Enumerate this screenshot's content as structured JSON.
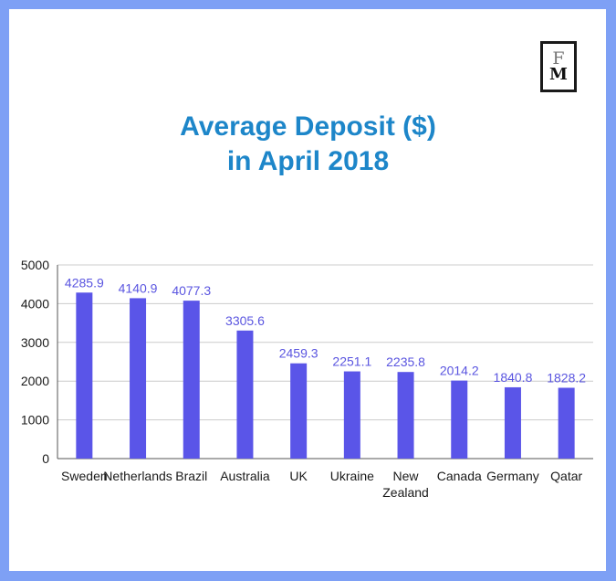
{
  "logo": {
    "line1": "F",
    "line2": "M"
  },
  "title_line1": "Average Deposit ($)",
  "title_line2": "in April  2018",
  "colors": {
    "bar": "#5a55e8",
    "title": "#1d86c9",
    "frame": "#7ea0f5",
    "grid": "#cccccc"
  },
  "chart_data": {
    "type": "bar",
    "title": "Average Deposit ($) in April  2018",
    "categories": [
      "Sweden",
      "Netherlands",
      "Brazil",
      "Australia",
      "UK",
      "Ukraine",
      "New Zealand",
      "Canada",
      "Germany",
      "Qatar"
    ],
    "values": [
      4285.9,
      4140.9,
      4077.3,
      3305.6,
      2459.3,
      2251.1,
      2235.8,
      2014.2,
      1840.8,
      1828.2
    ],
    "ylim": [
      0,
      5000
    ],
    "yticks": [
      0,
      1000,
      2000,
      3000,
      4000,
      5000
    ],
    "xlabel": "",
    "ylabel": "",
    "grid": true,
    "legend": "none"
  }
}
